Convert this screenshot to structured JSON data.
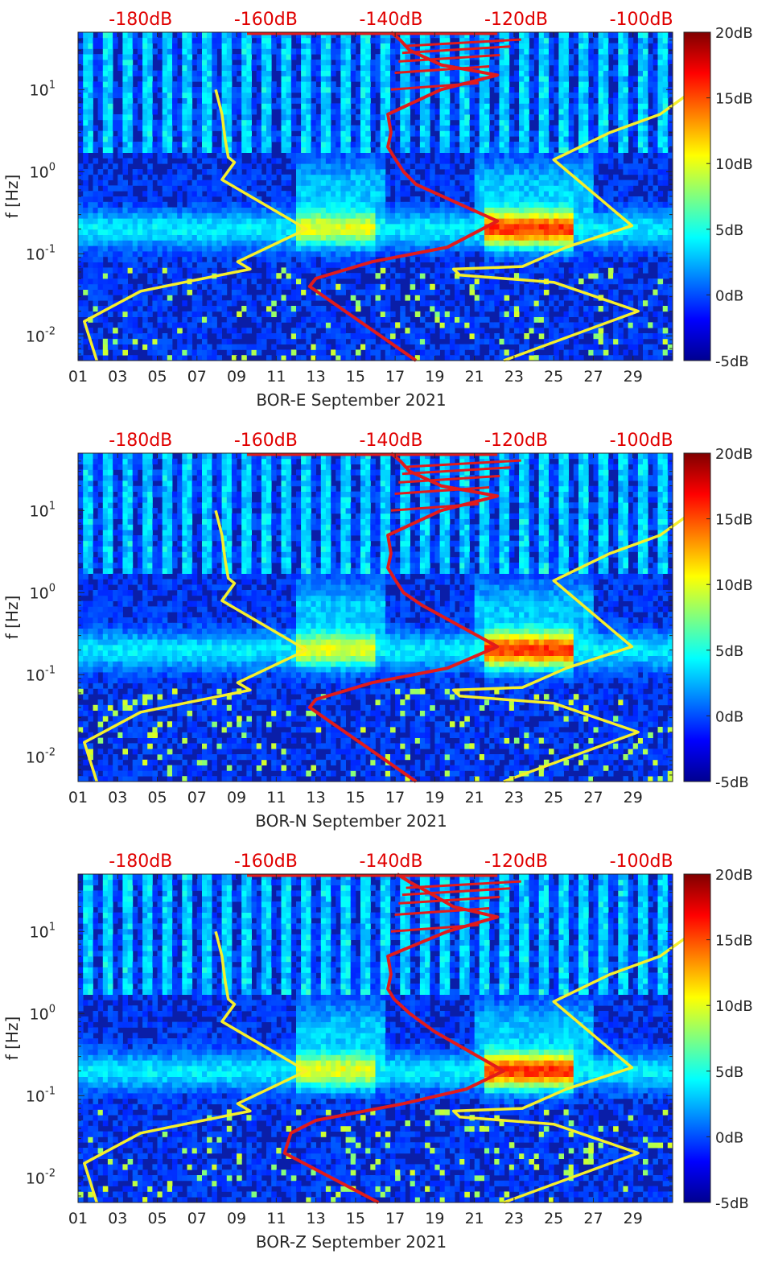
{
  "chart_data": {
    "type": "heatmap",
    "x_ticks": [
      "01",
      "03",
      "05",
      "07",
      "09",
      "11",
      "13",
      "15",
      "17",
      "19",
      "21",
      "23",
      "25",
      "27",
      "29"
    ],
    "x_range_days": [
      1,
      31
    ],
    "y_ticks": [
      {
        "value": 10,
        "base": "10",
        "exp": "1"
      },
      {
        "value": 1,
        "base": "10",
        "exp": "0"
      },
      {
        "value": 0.1,
        "base": "10",
        "exp": "-1"
      },
      {
        "value": 0.01,
        "base": "10",
        "exp": "-2"
      }
    ],
    "y_range_hz": [
      0.005,
      50
    ],
    "ylabel": "f [Hz]",
    "top_axis_ticks": [
      "-180dB",
      "-160dB",
      "-140dB",
      "-120dB",
      "-100dB"
    ],
    "top_axis_range_db": [
      -190,
      -95
    ],
    "colorbar_ticks": [
      "20dB",
      "15dB",
      "10dB",
      "5dB",
      "0dB",
      "-5dB"
    ],
    "colorbar_range_db": [
      -5,
      20
    ],
    "colors": {
      "psd_curve": "#e11b1b",
      "noise_model": "#f6ef2b",
      "top_axis_text": "#e00000"
    },
    "panels": [
      {
        "xlabel": "BOR-E September 2021",
        "psd_curve": {
          "name": "median PSD",
          "db": [
            -140,
            -138.5,
            -137,
            -132,
            -123,
            -132,
            -140.5,
            -140,
            -140.5,
            -139.5,
            -138,
            -136,
            -123,
            -131,
            -143,
            -152,
            -153,
            -136
          ],
          "f": [
            50,
            40,
            30,
            20,
            15,
            10,
            5,
            3,
            2,
            1.5,
            1,
            0.7,
            0.25,
            0.12,
            0.08,
            0.05,
            0.04,
            0.005
          ]
        },
        "nlnm_hnlm": [
          {
            "name": "NLNM",
            "db": [
              -168,
              -167,
              -166.5,
              -166,
              -165,
              -167,
              -153.5,
              -164.5,
              -162.5,
              -173,
              -180,
              -189,
              -187
            ],
            "f": [
              10,
              5,
              2.5,
              1.5,
              1.3,
              0.8,
              0.2,
              0.08,
              0.065,
              0.045,
              0.035,
              0.015,
              0.005
            ]
          },
          {
            "name": "NHNM",
            "db": [
              -91.5,
              -97,
              -105,
              -114,
              -101.5,
              -112,
              -119,
              -130,
              -129,
              -114,
              -100.5,
              -122
            ],
            "f": [
              10,
              5,
              3,
              1.4,
              0.22,
              0.12,
              0.07,
              0.065,
              0.055,
              0.045,
              0.02,
              0.005
            ]
          }
        ]
      },
      {
        "xlabel": "BOR-N September 2021",
        "psd_curve": {
          "name": "median PSD",
          "db": [
            -140,
            -138.5,
            -137,
            -132,
            -123,
            -132,
            -140.5,
            -140,
            -140.5,
            -139.5,
            -138,
            -135,
            -123,
            -131,
            -143,
            -152,
            -153,
            -136
          ],
          "f": [
            50,
            40,
            30,
            20,
            15,
            10,
            5,
            3,
            2,
            1.5,
            1,
            0.7,
            0.22,
            0.12,
            0.08,
            0.05,
            0.04,
            0.005
          ]
        },
        "nlnm_hnlm": [
          {
            "name": "NLNM",
            "db": [
              -168,
              -167,
              -166.5,
              -166,
              -165,
              -167,
              -153.5,
              -164.5,
              -162.5,
              -173,
              -180,
              -189,
              -187
            ],
            "f": [
              10,
              5,
              2.5,
              1.5,
              1.3,
              0.8,
              0.2,
              0.08,
              0.065,
              0.045,
              0.035,
              0.015,
              0.005
            ]
          },
          {
            "name": "NHNM",
            "db": [
              -91.5,
              -97,
              -105,
              -114,
              -101.5,
              -112,
              -119,
              -130,
              -129,
              -114,
              -100.5,
              -122
            ],
            "f": [
              10,
              5,
              3,
              1.4,
              0.22,
              0.12,
              0.07,
              0.065,
              0.055,
              0.045,
              0.02,
              0.005
            ]
          }
        ]
      },
      {
        "xlabel": "BOR-Z September 2021",
        "psd_curve": {
          "name": "median PSD",
          "db": [
            -139,
            -137,
            -134,
            -130,
            -123,
            -131,
            -140.5,
            -140,
            -140.5,
            -139.5,
            -137,
            -133,
            -122,
            -128,
            -138,
            -152,
            -156,
            -157,
            -142
          ],
          "f": [
            50,
            40,
            30,
            20,
            15,
            10,
            5,
            3,
            2,
            1.5,
            1,
            0.6,
            0.2,
            0.12,
            0.08,
            0.05,
            0.035,
            0.02,
            0.005
          ]
        },
        "nlnm_hnlm": [
          {
            "name": "NLNM",
            "db": [
              -168,
              -167,
              -166.5,
              -166,
              -165,
              -167,
              -153.5,
              -164.5,
              -162.5,
              -173,
              -180,
              -189,
              -187
            ],
            "f": [
              10,
              5,
              2.5,
              1.5,
              1.3,
              0.8,
              0.2,
              0.08,
              0.065,
              0.045,
              0.035,
              0.015,
              0.005
            ]
          },
          {
            "name": "NHNM",
            "db": [
              -91.5,
              -97,
              -105,
              -114,
              -101.5,
              -112,
              -119,
              -130,
              -129,
              -114,
              -100.5,
              -122
            ],
            "f": [
              10,
              5,
              3,
              1.4,
              0.22,
              0.12,
              0.07,
              0.065,
              0.055,
              0.045,
              0.02,
              0.005
            ]
          }
        ]
      }
    ]
  }
}
